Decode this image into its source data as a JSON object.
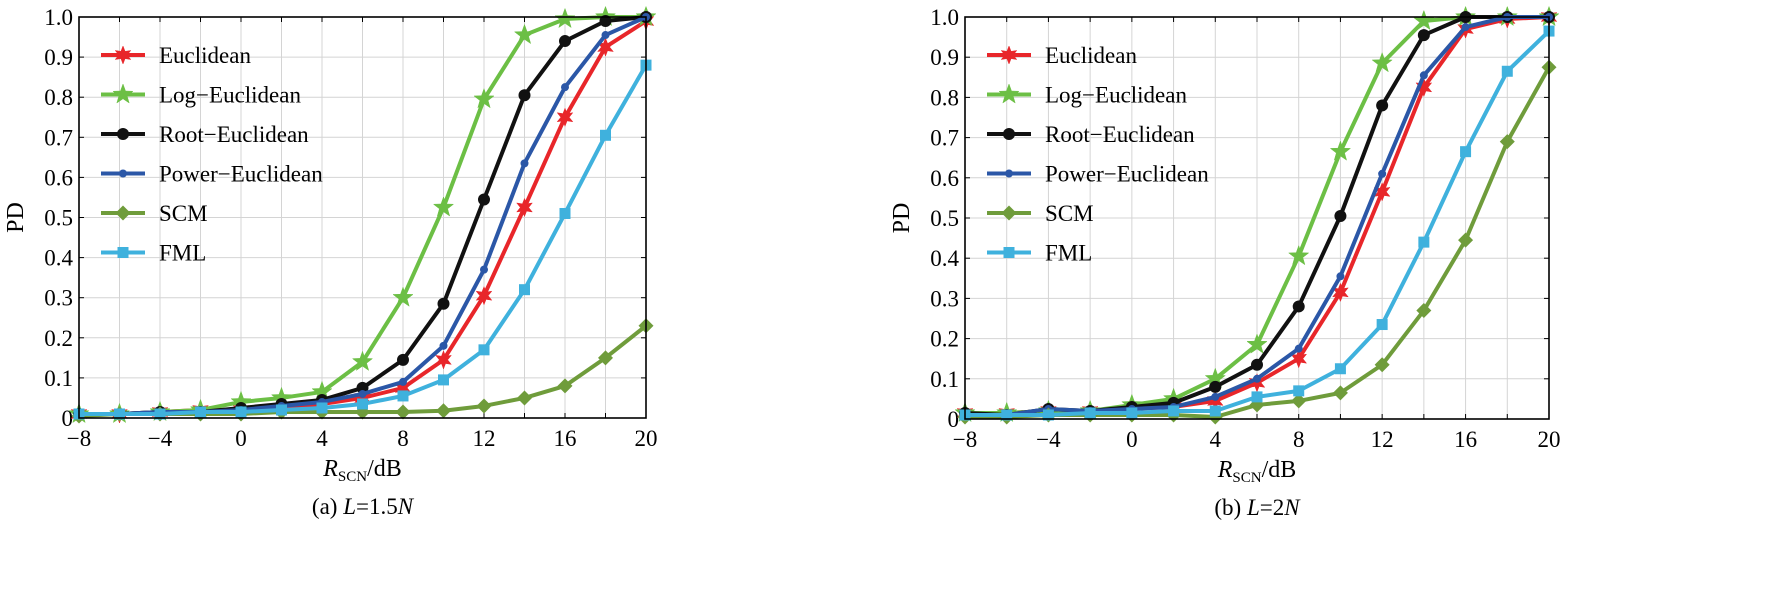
{
  "styles": {
    "Euclidean": {
      "color": "#e8262a",
      "marker": "star6"
    },
    "Log−Euclidean": {
      "color": "#6cbf45",
      "marker": "star5"
    },
    "Root−Euclidean": {
      "color": "#111111",
      "marker": "circle"
    },
    "Power−Euclidean": {
      "color": "#2b57a7",
      "marker": "dot"
    },
    "SCM": {
      "color": "#6f9c3b",
      "marker": "diamond"
    },
    "FML": {
      "color": "#3fb1dd",
      "marker": "square"
    }
  },
  "chart_data": [
    {
      "type": "line",
      "caption_prefix": "(a) ",
      "caption_var": "L",
      "caption_mid": "=1.5",
      "caption_var2": "N",
      "xlabel_main": "R",
      "xlabel_sub": "SCN",
      "xlabel_unit": "/dB",
      "ylabel": "PD",
      "xlim": [
        -8,
        20
      ],
      "ylim": [
        0,
        1.0
      ],
      "xticks": [
        -8,
        -4,
        0,
        4,
        8,
        12,
        16,
        20
      ],
      "xtick_labels": [
        "−8",
        "−4",
        "0",
        "4",
        "8",
        "12",
        "16",
        "20"
      ],
      "yticks": [
        0,
        0.1,
        0.2,
        0.3,
        0.4,
        0.5,
        0.6,
        0.7,
        0.8,
        0.9,
        1.0
      ],
      "ytick_labels": [
        "0",
        "0.1",
        "0.2",
        "0.3",
        "0.4",
        "0.5",
        "0.6",
        "0.7",
        "0.8",
        "0.9",
        "1.0"
      ],
      "grid": true,
      "legend_position": "top-left",
      "x": [
        -8,
        -6,
        -4,
        -2,
        0,
        2,
        4,
        6,
        8,
        10,
        12,
        14,
        16,
        18,
        20
      ],
      "series": [
        {
          "name": "Euclidean",
          "values": [
            0.01,
            0.01,
            0.015,
            0.02,
            0.02,
            0.025,
            0.035,
            0.05,
            0.075,
            0.145,
            0.305,
            0.525,
            0.75,
            0.925,
            0.99
          ]
        },
        {
          "name": "Log−Euclidean",
          "values": [
            0.01,
            0.01,
            0.015,
            0.02,
            0.04,
            0.05,
            0.065,
            0.14,
            0.3,
            0.525,
            0.795,
            0.955,
            0.995,
            1.0,
            1.0
          ]
        },
        {
          "name": "Root−Euclidean",
          "values": [
            0.01,
            0.01,
            0.015,
            0.015,
            0.025,
            0.035,
            0.045,
            0.075,
            0.145,
            0.285,
            0.545,
            0.805,
            0.94,
            0.99,
            1.0
          ]
        },
        {
          "name": "Power−Euclidean",
          "values": [
            0.01,
            0.01,
            0.015,
            0.015,
            0.02,
            0.03,
            0.04,
            0.06,
            0.09,
            0.18,
            0.37,
            0.635,
            0.825,
            0.955,
            1.0
          ]
        },
        {
          "name": "SCM",
          "values": [
            0.005,
            0.01,
            0.01,
            0.01,
            0.01,
            0.015,
            0.015,
            0.015,
            0.015,
            0.018,
            0.03,
            0.05,
            0.08,
            0.15,
            0.23
          ]
        },
        {
          "name": "FML",
          "values": [
            0.01,
            0.01,
            0.01,
            0.015,
            0.015,
            0.02,
            0.025,
            0.035,
            0.055,
            0.095,
            0.17,
            0.32,
            0.51,
            0.705,
            0.88
          ]
        }
      ]
    },
    {
      "type": "line",
      "caption_prefix": "(b) ",
      "caption_var": "L",
      "caption_mid": "=2",
      "caption_var2": "N",
      "xlabel_main": "R",
      "xlabel_sub": "SCN",
      "xlabel_unit": "/dB",
      "ylabel": "PD",
      "xlim": [
        -8,
        20
      ],
      "ylim": [
        0,
        1.0
      ],
      "xticks": [
        -8,
        -4,
        0,
        4,
        8,
        12,
        16,
        20
      ],
      "xtick_labels": [
        "−8",
        "−4",
        "0",
        "4",
        "8",
        "12",
        "16",
        "20"
      ],
      "yticks": [
        0,
        0.1,
        0.2,
        0.3,
        0.4,
        0.5,
        0.6,
        0.7,
        0.8,
        0.9,
        1.0
      ],
      "ytick_labels": [
        "0",
        "0.1",
        "0.2",
        "0.3",
        "0.4",
        "0.5",
        "0.6",
        "0.7",
        "0.8",
        "0.9",
        "1.0"
      ],
      "grid": true,
      "legend_position": "top-left",
      "x": [
        -8,
        -6,
        -4,
        -2,
        0,
        2,
        4,
        6,
        8,
        10,
        12,
        14,
        16,
        18,
        20
      ],
      "series": [
        {
          "name": "Euclidean",
          "values": [
            0.015,
            0.015,
            0.02,
            0.02,
            0.025,
            0.03,
            0.045,
            0.09,
            0.15,
            0.315,
            0.565,
            0.825,
            0.97,
            0.995,
            1.0
          ]
        },
        {
          "name": "Log−Euclidean",
          "values": [
            0.015,
            0.015,
            0.02,
            0.02,
            0.035,
            0.05,
            0.1,
            0.185,
            0.405,
            0.665,
            0.885,
            0.99,
            1.0,
            1.0,
            1.0
          ]
        },
        {
          "name": "Root−Euclidean",
          "values": [
            0.015,
            0.01,
            0.025,
            0.02,
            0.03,
            0.04,
            0.08,
            0.135,
            0.28,
            0.505,
            0.78,
            0.955,
            1.0,
            1.0,
            1.0
          ]
        },
        {
          "name": "Power−Euclidean",
          "values": [
            0.01,
            0.01,
            0.025,
            0.02,
            0.025,
            0.03,
            0.055,
            0.1,
            0.175,
            0.355,
            0.61,
            0.855,
            0.975,
            1.0,
            1.0
          ]
        },
        {
          "name": "SCM",
          "values": [
            0.005,
            0.005,
            0.01,
            0.01,
            0.01,
            0.01,
            0.005,
            0.035,
            0.045,
            0.065,
            0.135,
            0.27,
            0.445,
            0.69,
            0.875
          ]
        },
        {
          "name": "FML",
          "values": [
            0.01,
            0.01,
            0.01,
            0.015,
            0.015,
            0.02,
            0.02,
            0.055,
            0.07,
            0.125,
            0.235,
            0.44,
            0.665,
            0.865,
            0.965
          ]
        }
      ]
    }
  ]
}
